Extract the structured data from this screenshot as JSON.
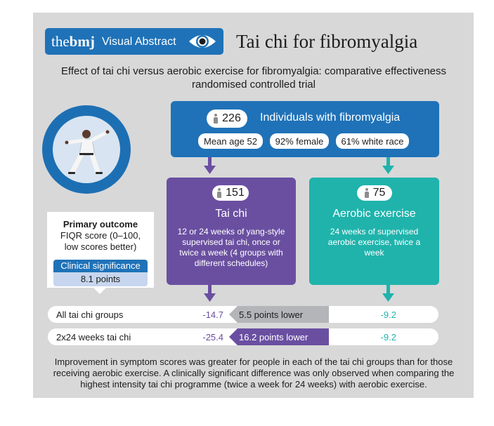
{
  "header": {
    "brand_prefix": "the",
    "brand_bold": "bmj",
    "badge_label": "Visual Abstract",
    "title": "Tai chi for fibromyalgia",
    "subtitle": "Effect of tai chi versus aerobic exercise for fibromyalgia: comparative effectiveness randomised controlled trial"
  },
  "population": {
    "count": "226",
    "label": "Individuals with fibromyalgia",
    "stats": [
      "Mean age 52",
      "92% female",
      "61% white race"
    ]
  },
  "arms": {
    "tai_chi": {
      "count": "151",
      "title": "Tai chi",
      "description": "12 or 24 weeks of yang-style supervised tai chi, once or twice a week (4 groups with different schedules)"
    },
    "aerobic": {
      "count": "75",
      "title": "Aerobic exercise",
      "description": "24 weeks of supervised aerobic exercise, twice a week"
    }
  },
  "outcome": {
    "heading": "Primary outcome",
    "measure": "FIQR score (0–100, low scores better)",
    "significance_label": "Clinical significance",
    "significance_value": "8.1 points"
  },
  "results": [
    {
      "label": "All tai chi groups",
      "tai_chi_value": "-14.7",
      "difference": "5.5 points lower",
      "aerobic_value": "-9.2",
      "diff_color": "#b4b5b8"
    },
    {
      "label": "2x24 weeks tai chi",
      "tai_chi_value": "-25.4",
      "difference": "16.2 points lower",
      "aerobic_value": "-9.2",
      "diff_color": "#6a4fa1"
    }
  ],
  "footer": "Improvement in symptom scores was greater for people in each of the tai chi groups than for those receiving aerobic exercise. A clinically significant difference was only observed when comparing the highest intensity tai chi programme (twice a week for 24 weeks) with aerobic exercise.",
  "colors": {
    "bmj_blue": "#1f72b8",
    "tai_chi_purple": "#6a4fa1",
    "aerobic_teal": "#1fb3ac",
    "panel_grey": "#d8d8d9"
  }
}
